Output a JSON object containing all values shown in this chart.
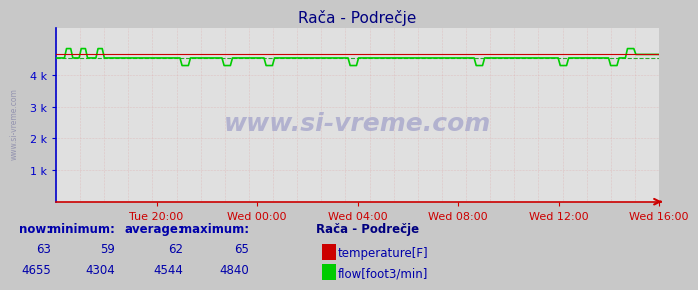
{
  "title": "Rača - Podrečje",
  "bg_color": "#c8c8c8",
  "plot_bg_color": "#e0e0e0",
  "grid_color_x": "#ddaaaa",
  "grid_color_y": "#ddaaaa",
  "title_color": "#000080",
  "axis_color_bottom": "#cc0000",
  "axis_color_left": "#0000cc",
  "text_color": "#0000aa",
  "watermark": "www.si-vreme.com",
  "watermark_color": "#aaaacc",
  "x_labels": [
    "Tue 20:00",
    "Wed 00:00",
    "Wed 04:00",
    "Wed 08:00",
    "Wed 12:00",
    "Wed 16:00"
  ],
  "ylim": [
    0,
    5500
  ],
  "ytick_vals": [
    1000,
    2000,
    3000,
    4000
  ],
  "ytick_labels": [
    "1 k",
    "2 k",
    "3 k",
    "4 k"
  ],
  "flow_color": "#00cc00",
  "temp_color": "#cc0000",
  "flow_avg_line_color": "#009900",
  "flow_average": 4544,
  "flow_min": 4304,
  "flow_max": 4840,
  "flow_now": 4655,
  "temp_now": 63,
  "temp_min": 59,
  "temp_avg": 62,
  "temp_max": 65,
  "station_name": "Rača - Podrečje",
  "legend_labels": [
    "temperature[F]",
    "flow[foot3/min]"
  ],
  "stats_headers": [
    "now:",
    "minimum:",
    "average:",
    "maximum:"
  ],
  "n_points": 288,
  "flow_signal": [
    4544,
    4544,
    4544,
    4544,
    4544,
    4840,
    4840,
    4840,
    4544,
    4544,
    4544,
    4544,
    4840,
    4840,
    4840,
    4544,
    4544,
    4544,
    4544,
    4544,
    4840,
    4840,
    4840,
    4544,
    4544,
    4544,
    4544,
    4544,
    4544,
    4544,
    4544,
    4544,
    4544,
    4544,
    4544,
    4544,
    4544,
    4544,
    4544,
    4544,
    4544,
    4544,
    4544,
    4544,
    4544,
    4544,
    4544,
    4544,
    4544,
    4544,
    4544,
    4544,
    4544,
    4544,
    4544,
    4544,
    4544,
    4544,
    4544,
    4544,
    4304,
    4304,
    4304,
    4304,
    4544,
    4544,
    4544,
    4544,
    4544,
    4544,
    4544,
    4544,
    4544,
    4544,
    4544,
    4544,
    4544,
    4544,
    4544,
    4544,
    4304,
    4304,
    4304,
    4304,
    4544,
    4544,
    4544,
    4544,
    4544,
    4544,
    4544,
    4544,
    4544,
    4544,
    4544,
    4544,
    4544,
    4544,
    4544,
    4544,
    4304,
    4304,
    4304,
    4304,
    4544,
    4544,
    4544,
    4544,
    4544,
    4544,
    4544,
    4544,
    4544,
    4544,
    4544,
    4544,
    4544,
    4544,
    4544,
    4544,
    4544,
    4544,
    4544,
    4544,
    4544,
    4544,
    4544,
    4544,
    4544,
    4544,
    4544,
    4544,
    4544,
    4544,
    4544,
    4544,
    4544,
    4544,
    4544,
    4544,
    4304,
    4304,
    4304,
    4304,
    4544,
    4544,
    4544,
    4544,
    4544,
    4544,
    4544,
    4544,
    4544,
    4544,
    4544,
    4544,
    4544,
    4544,
    4544,
    4544,
    4544,
    4544,
    4544,
    4544,
    4544,
    4544,
    4544,
    4544,
    4544,
    4544,
    4544,
    4544,
    4544,
    4544,
    4544,
    4544,
    4544,
    4544,
    4544,
    4544,
    4544,
    4544,
    4544,
    4544,
    4544,
    4544,
    4544,
    4544,
    4544,
    4544,
    4544,
    4544,
    4544,
    4544,
    4544,
    4544,
    4544,
    4544,
    4544,
    4544,
    4304,
    4304,
    4304,
    4304,
    4544,
    4544,
    4544,
    4544,
    4544,
    4544,
    4544,
    4544,
    4544,
    4544,
    4544,
    4544,
    4544,
    4544,
    4544,
    4544,
    4544,
    4544,
    4544,
    4544,
    4544,
    4544,
    4544,
    4544,
    4544,
    4544,
    4544,
    4544,
    4544,
    4544,
    4544,
    4544,
    4544,
    4544,
    4544,
    4544,
    4304,
    4304,
    4304,
    4304,
    4544,
    4544,
    4544,
    4544,
    4544,
    4544,
    4544,
    4544,
    4544,
    4544,
    4544,
    4544,
    4544,
    4544,
    4544,
    4544,
    4544,
    4544,
    4544,
    4544,
    4304,
    4304,
    4304,
    4304,
    4544,
    4544,
    4544,
    4544,
    4840,
    4840,
    4840,
    4840,
    4655,
    4655,
    4655,
    4655,
    4655,
    4655,
    4655,
    4655,
    4655,
    4655,
    4655,
    4655
  ]
}
